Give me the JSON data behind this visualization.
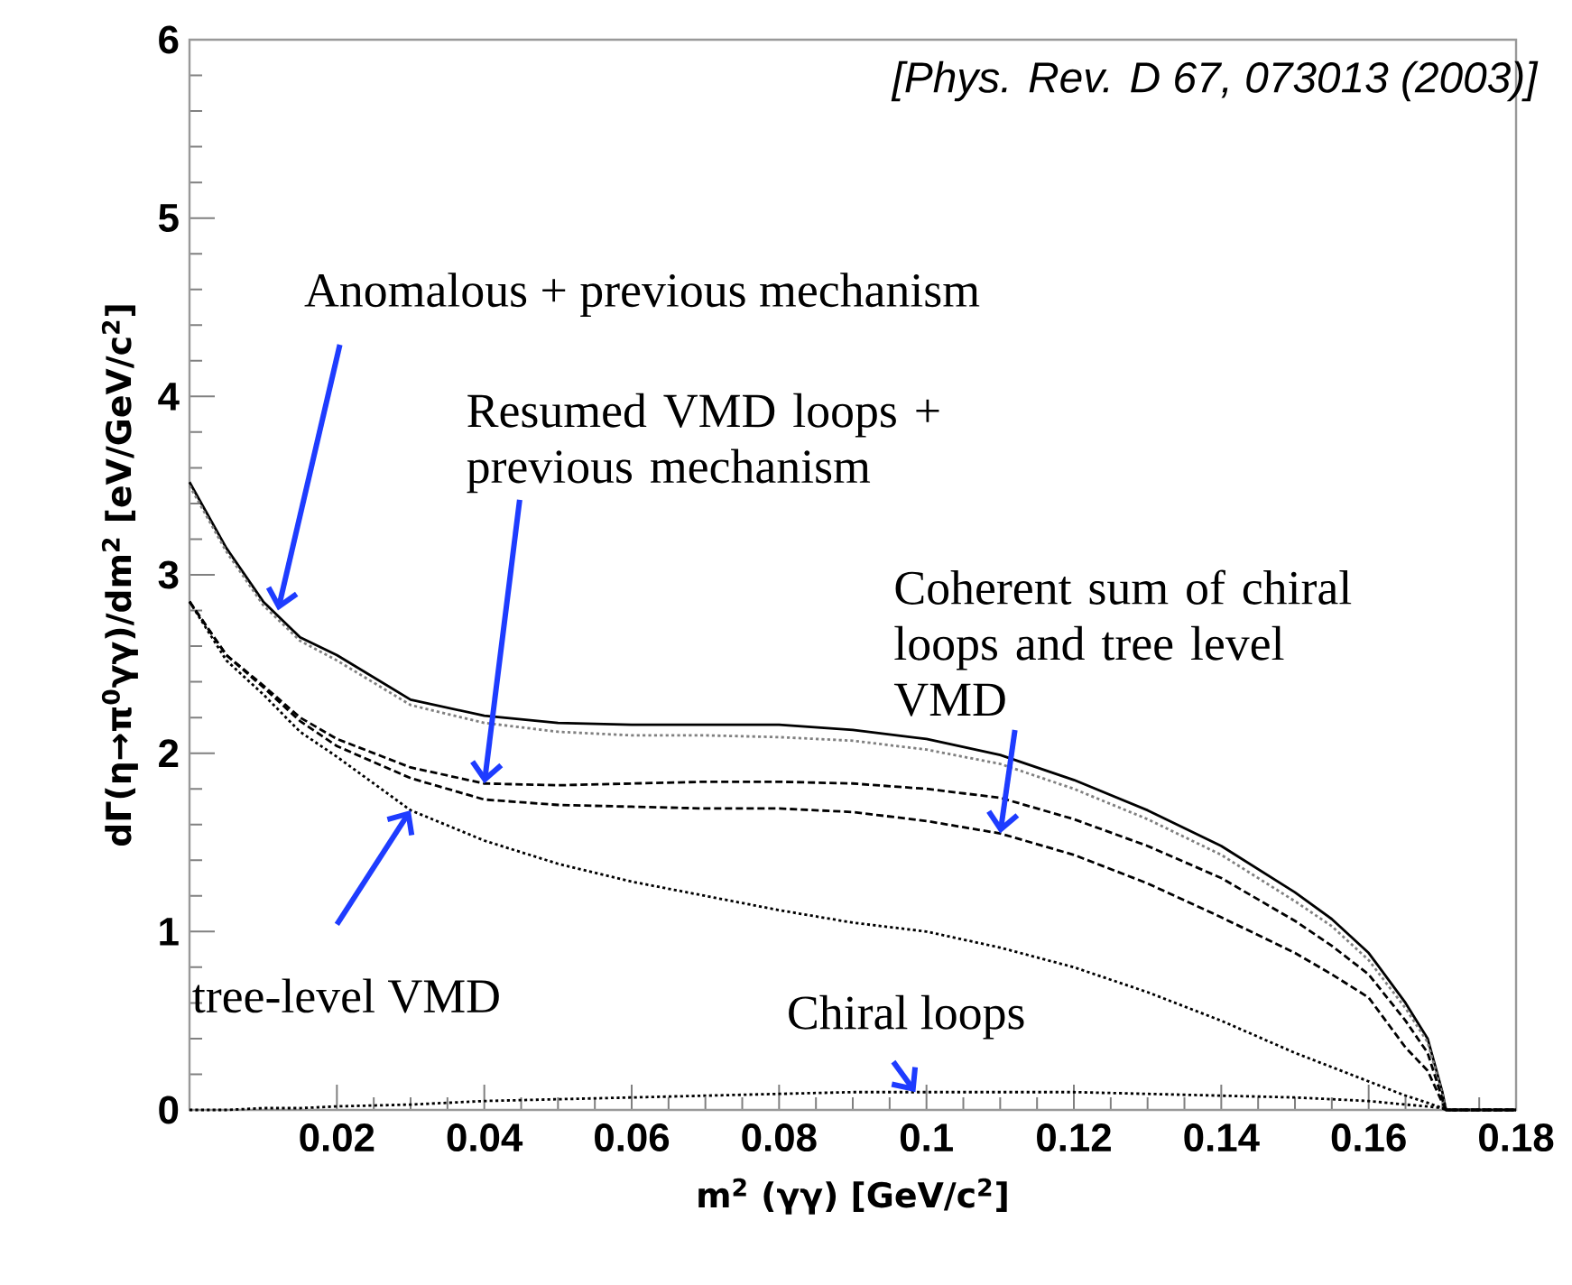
{
  "chart_data": {
    "type": "line",
    "xlabel": "m$^{2}$ (γγ) [GeV/c$^{2}$]",
    "ylabel": "dΓ(η→π$^{0}$γγ)/dm$^{2}$ [eV/GeV/c$^{2}$]",
    "x": [
      0,
      0.005,
      0.01,
      0.015,
      0.02,
      0.03,
      0.04,
      0.05,
      0.06,
      0.07,
      0.08,
      0.09,
      0.1,
      0.11,
      0.12,
      0.13,
      0.14,
      0.15,
      0.155,
      0.16,
      0.165,
      0.168,
      0.17,
      0.1705,
      0.175,
      0.18
    ],
    "series": [
      {
        "color": "#000000",
        "line_style": "solid",
        "values": [
          3.52,
          3.15,
          2.85,
          2.65,
          2.55,
          2.3,
          2.21,
          2.17,
          2.16,
          2.16,
          2.16,
          2.13,
          2.08,
          1.99,
          1.85,
          1.68,
          1.48,
          1.22,
          1.07,
          0.88,
          0.6,
          0.4,
          0.1,
          0,
          0,
          0
        ]
      },
      {
        "color": "#808080",
        "line_style": "dotted",
        "values": [
          3.5,
          3.13,
          2.83,
          2.63,
          2.52,
          2.27,
          2.17,
          2.12,
          2.1,
          2.1,
          2.09,
          2.07,
          2.02,
          1.94,
          1.8,
          1.63,
          1.43,
          1.17,
          1.03,
          0.84,
          0.57,
          0.38,
          0.09,
          0,
          0,
          0
        ]
      },
      {
        "color": "#000000",
        "line_style": "dashed",
        "values": [
          2.85,
          2.55,
          2.38,
          2.2,
          2.08,
          1.92,
          1.83,
          1.82,
          1.83,
          1.84,
          1.84,
          1.83,
          1.8,
          1.75,
          1.63,
          1.48,
          1.3,
          1.06,
          0.92,
          0.76,
          0.5,
          0.32,
          0.06,
          0,
          0,
          0
        ]
      },
      {
        "color": "#000000",
        "line_style": "dashed",
        "values": [
          2.85,
          2.55,
          2.37,
          2.18,
          2.04,
          1.86,
          1.74,
          1.71,
          1.7,
          1.69,
          1.69,
          1.67,
          1.62,
          1.55,
          1.43,
          1.27,
          1.08,
          0.88,
          0.76,
          0.63,
          0.35,
          0.22,
          0.04,
          0,
          0,
          0
        ]
      },
      {
        "color": "#000000",
        "line_style": "dotted",
        "values": [
          2.85,
          2.52,
          2.33,
          2.12,
          1.98,
          1.68,
          1.51,
          1.38,
          1.28,
          1.2,
          1.12,
          1.05,
          1.0,
          0.91,
          0.8,
          0.66,
          0.5,
          0.32,
          0.24,
          0.16,
          0.08,
          0.04,
          0.01,
          0,
          0,
          0
        ]
      },
      {
        "color": "#000000",
        "line_style": "dotted",
        "values": [
          0,
          0,
          0.01,
          0.01,
          0.02,
          0.03,
          0.05,
          0.06,
          0.07,
          0.08,
          0.09,
          0.1,
          0.1,
          0.1,
          0.1,
          0.09,
          0.08,
          0.07,
          0.06,
          0.05,
          0.03,
          0.02,
          0.01,
          0,
          0,
          0
        ]
      }
    ],
    "xlim": [
      0,
      0.18
    ],
    "xticks": [
      0.02,
      0.04,
      0.06,
      0.08,
      0.1,
      0.12,
      0.14,
      0.16,
      0.18
    ],
    "ylim": [
      0,
      6
    ],
    "yticks": [
      0,
      1,
      2,
      3,
      4,
      5,
      6
    ],
    "marker": "none",
    "annotations": [
      {
        "text": "Anomalous + previous mechanism",
        "x": 0.012,
        "y": 2.8
      },
      {
        "text": "Resumed VMD loops + previous mechanism",
        "x": 0.04,
        "y": 1.83
      },
      {
        "text": "Coherent sum of chiral loops and tree level VMD",
        "x": 0.11,
        "y": 1.55
      },
      {
        "text": "tree-level VMD",
        "x": 0.03,
        "y": 1.68
      },
      {
        "text": "Chiral loops",
        "x": 0.0985,
        "y": 0.1
      },
      "[Phys. Rev. D 67, 073013 (2003)]"
    ]
  }
}
